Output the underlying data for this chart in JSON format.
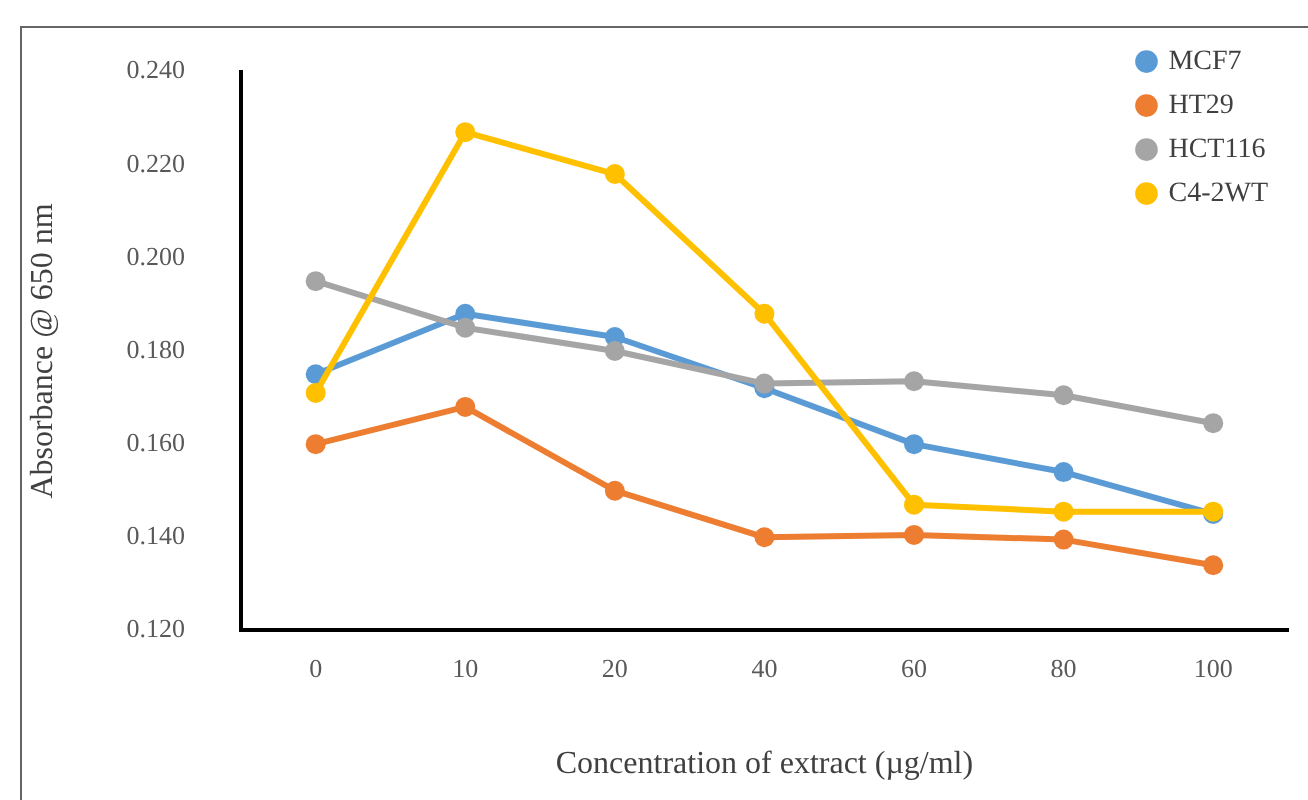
{
  "chart_data": {
    "type": "line",
    "xlabel": "Concentration of extract (µg/ml)",
    "ylabel": "Absorbance @ 650 nm",
    "categories": [
      "0",
      "10",
      "20",
      "40",
      "60",
      "80",
      "100"
    ],
    "series": [
      {
        "name": "MCF7",
        "color": "#5b9bd5",
        "values": [
          0.175,
          0.188,
          0.183,
          0.172,
          0.16,
          0.154,
          0.145
        ]
      },
      {
        "name": "HT29",
        "color": "#ed7d31",
        "values": [
          0.16,
          0.168,
          0.15,
          0.14,
          0.1405,
          0.1395,
          0.134
        ]
      },
      {
        "name": "HCT116",
        "color": "#a5a5a5",
        "values": [
          0.195,
          0.185,
          0.18,
          0.173,
          0.1735,
          0.1705,
          0.1645
        ]
      },
      {
        "name": "C4-2WT",
        "color": "#ffc000",
        "values": [
          0.171,
          0.227,
          0.218,
          0.188,
          0.147,
          0.1455,
          0.1455
        ]
      }
    ],
    "ylim": [
      0.12,
      0.24
    ],
    "yticks": [
      {
        "value": 0.12,
        "label": "0.120"
      },
      {
        "value": 0.14,
        "label": "0.140"
      },
      {
        "value": 0.16,
        "label": "0.160"
      },
      {
        "value": 0.18,
        "label": "0.180"
      },
      {
        "value": 0.2,
        "label": "0.200"
      },
      {
        "value": 0.22,
        "label": "0.220"
      },
      {
        "value": 0.24,
        "label": "0.240"
      }
    ],
    "grid": false,
    "legend": "top right",
    "marker": "circle",
    "line_style": "solid"
  }
}
